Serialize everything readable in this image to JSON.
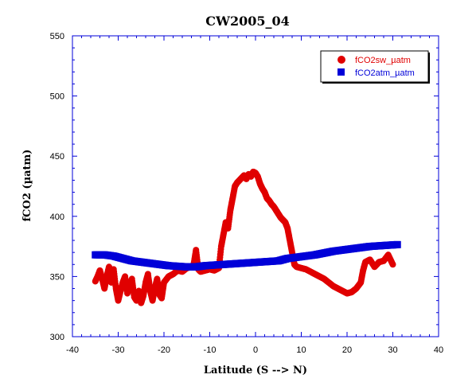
{
  "chart_data": {
    "type": "scatter",
    "title": "CW2005_04",
    "xlabel": "Latitude (S --> N)",
    "ylabel": "fCO2 (µatm)",
    "xlim": [
      -40,
      40
    ],
    "ylim": [
      300,
      550
    ],
    "xticks": [
      -40,
      -30,
      -20,
      -10,
      0,
      10,
      20,
      30,
      40
    ],
    "yticks": [
      300,
      350,
      400,
      450,
      500,
      550
    ],
    "grid": false,
    "legend_position": "top-right",
    "series": [
      {
        "name": "fCO2sw_µatm",
        "color": "#e00000",
        "marker": "circle",
        "points": [
          [
            -35,
            346
          ],
          [
            -34.5,
            350
          ],
          [
            -34,
            355
          ],
          [
            -33.5,
            348
          ],
          [
            -33,
            340
          ],
          [
            -32.5,
            350
          ],
          [
            -32,
            358
          ],
          [
            -31.5,
            345
          ],
          [
            -31,
            356
          ],
          [
            -30.5,
            340
          ],
          [
            -30,
            330
          ],
          [
            -29.5,
            338
          ],
          [
            -29,
            345
          ],
          [
            -28.5,
            350
          ],
          [
            -28,
            336
          ],
          [
            -27.5,
            342
          ],
          [
            -27,
            348
          ],
          [
            -26.5,
            333
          ],
          [
            -26,
            330
          ],
          [
            -25.5,
            338
          ],
          [
            -25,
            328
          ],
          [
            -24.5,
            334
          ],
          [
            -24,
            345
          ],
          [
            -23.5,
            352
          ],
          [
            -23,
            338
          ],
          [
            -22.5,
            330
          ],
          [
            -22,
            340
          ],
          [
            -21.5,
            348
          ],
          [
            -21,
            335
          ],
          [
            -20.5,
            332
          ],
          [
            -20,
            345
          ],
          [
            -19,
            350
          ],
          [
            -18,
            352
          ],
          [
            -17,
            355
          ],
          [
            -16,
            354
          ],
          [
            -15,
            357
          ],
          [
            -14,
            358
          ],
          [
            -13.5,
            360
          ],
          [
            -13,
            372
          ],
          [
            -12.5,
            356
          ],
          [
            -12,
            354
          ],
          [
            -11,
            355
          ],
          [
            -10,
            356
          ],
          [
            -9,
            355
          ],
          [
            -8,
            357
          ],
          [
            -7.5,
            375
          ],
          [
            -7,
            385
          ],
          [
            -6.5,
            395
          ],
          [
            -6,
            390
          ],
          [
            -5.5,
            405
          ],
          [
            -5,
            415
          ],
          [
            -4.5,
            425
          ],
          [
            -4,
            428
          ],
          [
            -3.5,
            430
          ],
          [
            -3,
            432
          ],
          [
            -2.5,
            434
          ],
          [
            -2,
            431
          ],
          [
            -1.5,
            435
          ],
          [
            -1,
            433
          ],
          [
            -0.5,
            437
          ],
          [
            0,
            436
          ],
          [
            0.5,
            433
          ],
          [
            1,
            427
          ],
          [
            1.5,
            423
          ],
          [
            2,
            420
          ],
          [
            2.5,
            415
          ],
          [
            3,
            413
          ],
          [
            3.5,
            410
          ],
          [
            4,
            408
          ],
          [
            4.5,
            405
          ],
          [
            5,
            402
          ],
          [
            5.5,
            399
          ],
          [
            6,
            397
          ],
          [
            6.5,
            395
          ],
          [
            7,
            390
          ],
          [
            7.5,
            380
          ],
          [
            8,
            370
          ],
          [
            8.5,
            360
          ],
          [
            9,
            358
          ],
          [
            10,
            357
          ],
          [
            11,
            356
          ],
          [
            12,
            354
          ],
          [
            13,
            352
          ],
          [
            14,
            350
          ],
          [
            15,
            348
          ],
          [
            16,
            345
          ],
          [
            17,
            342
          ],
          [
            18,
            340
          ],
          [
            19,
            338
          ],
          [
            20,
            336
          ],
          [
            21,
            337
          ],
          [
            22,
            340
          ],
          [
            23,
            345
          ],
          [
            23.5,
            355
          ],
          [
            24,
            362
          ],
          [
            25,
            364
          ],
          [
            26,
            358
          ],
          [
            27,
            362
          ],
          [
            28,
            363
          ],
          [
            29,
            368
          ],
          [
            30,
            360
          ]
        ]
      },
      {
        "name": "fCO2atm_µatm",
        "color": "#0000d8",
        "marker": "square",
        "points": [
          [
            -35,
            368
          ],
          [
            -33,
            368
          ],
          [
            -31,
            367
          ],
          [
            -29,
            365
          ],
          [
            -27,
            363
          ],
          [
            -25,
            362
          ],
          [
            -23,
            361
          ],
          [
            -21,
            360
          ],
          [
            -19,
            359
          ],
          [
            -17,
            358.5
          ],
          [
            -15,
            358
          ],
          [
            -13,
            358
          ],
          [
            -11,
            359
          ],
          [
            -9,
            359.5
          ],
          [
            -7,
            360
          ],
          [
            -5,
            360.5
          ],
          [
            -3,
            361
          ],
          [
            -1,
            361.5
          ],
          [
            1,
            362
          ],
          [
            3,
            362.5
          ],
          [
            5,
            363
          ],
          [
            7,
            365
          ],
          [
            9,
            366
          ],
          [
            11,
            367
          ],
          [
            13,
            368
          ],
          [
            15,
            369.5
          ],
          [
            17,
            371
          ],
          [
            19,
            372
          ],
          [
            21,
            373
          ],
          [
            23,
            374
          ],
          [
            25,
            375
          ],
          [
            27,
            375.5
          ],
          [
            29,
            376
          ],
          [
            31,
            376.5
          ]
        ]
      }
    ]
  }
}
